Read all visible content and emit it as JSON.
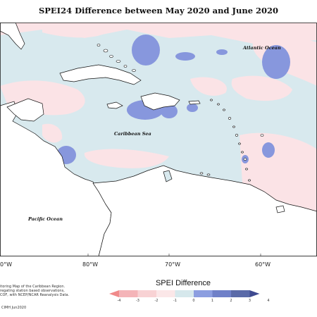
{
  "title": "SPEI24 Difference between May 2020 and June 2020",
  "map_labels": {
    "atlantic": "Atlantic Ocean",
    "caribbean": "Caribbean Sea",
    "pacific": "Pacific Ocean"
  },
  "longitude_labels": [
    "0°W",
    "80°W",
    "70°W",
    "60°W"
  ],
  "footer": {
    "line1": "itoring Map of the Caribbean Region.",
    "line2": "regating station based observations,",
    "line3": "COF, with NCEP/NCAR Reanalysis Data.",
    "credit": "CIMH Jun2020"
  },
  "legend": {
    "title": "SPEI Difference",
    "ticks": [
      "-4",
      "-3",
      "-2",
      "-1",
      "0",
      "1",
      "2",
      "3",
      "4"
    ],
    "colors": [
      "#f08a8a",
      "#f4b4b8",
      "#f8d2d4",
      "#fbe7e8",
      "#d6e8ec",
      "#8c9ee0",
      "#6f80c8",
      "#5a6aa8",
      "#3e4a90"
    ]
  },
  "colors": {
    "land": "#ffffff",
    "ocean_neutral": "#d8e9ee",
    "dry_light": "#fbe3e6",
    "wet": "#8797dd",
    "coast": "#111111"
  }
}
